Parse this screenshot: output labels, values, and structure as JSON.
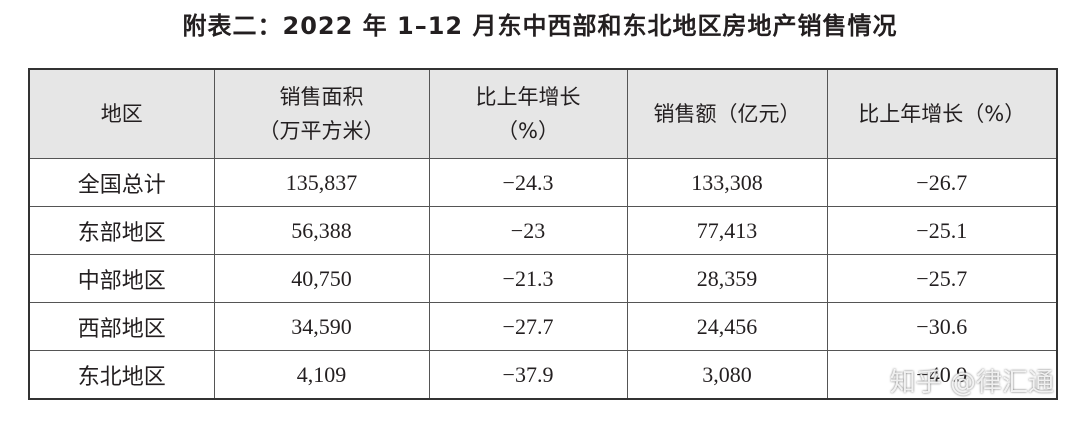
{
  "title": "附表二：2022 年 1–12 月东中西部和东北地区房地产销售情况",
  "table": {
    "header": [
      [
        "地区"
      ],
      [
        "销售面积",
        "（万平方米）"
      ],
      [
        "比上年增长",
        "（%）"
      ],
      [
        "销售额（亿元）"
      ],
      [
        "比上年增长（%）"
      ]
    ],
    "rows": [
      [
        "全国总计",
        "135,837",
        "−24.3",
        "133,308",
        "−26.7"
      ],
      [
        "东部地区",
        "56,388",
        "−23",
        "77,413",
        "−25.1"
      ],
      [
        "中部地区",
        "40,750",
        "−21.3",
        "28,359",
        "−25.7"
      ],
      [
        "西部地区",
        "34,590",
        "−27.7",
        "24,456",
        "−30.6"
      ],
      [
        "东北地区",
        "4,109",
        "−37.9",
        "3,080",
        "−40.9"
      ]
    ]
  },
  "watermark": "知乎 @律汇通"
}
